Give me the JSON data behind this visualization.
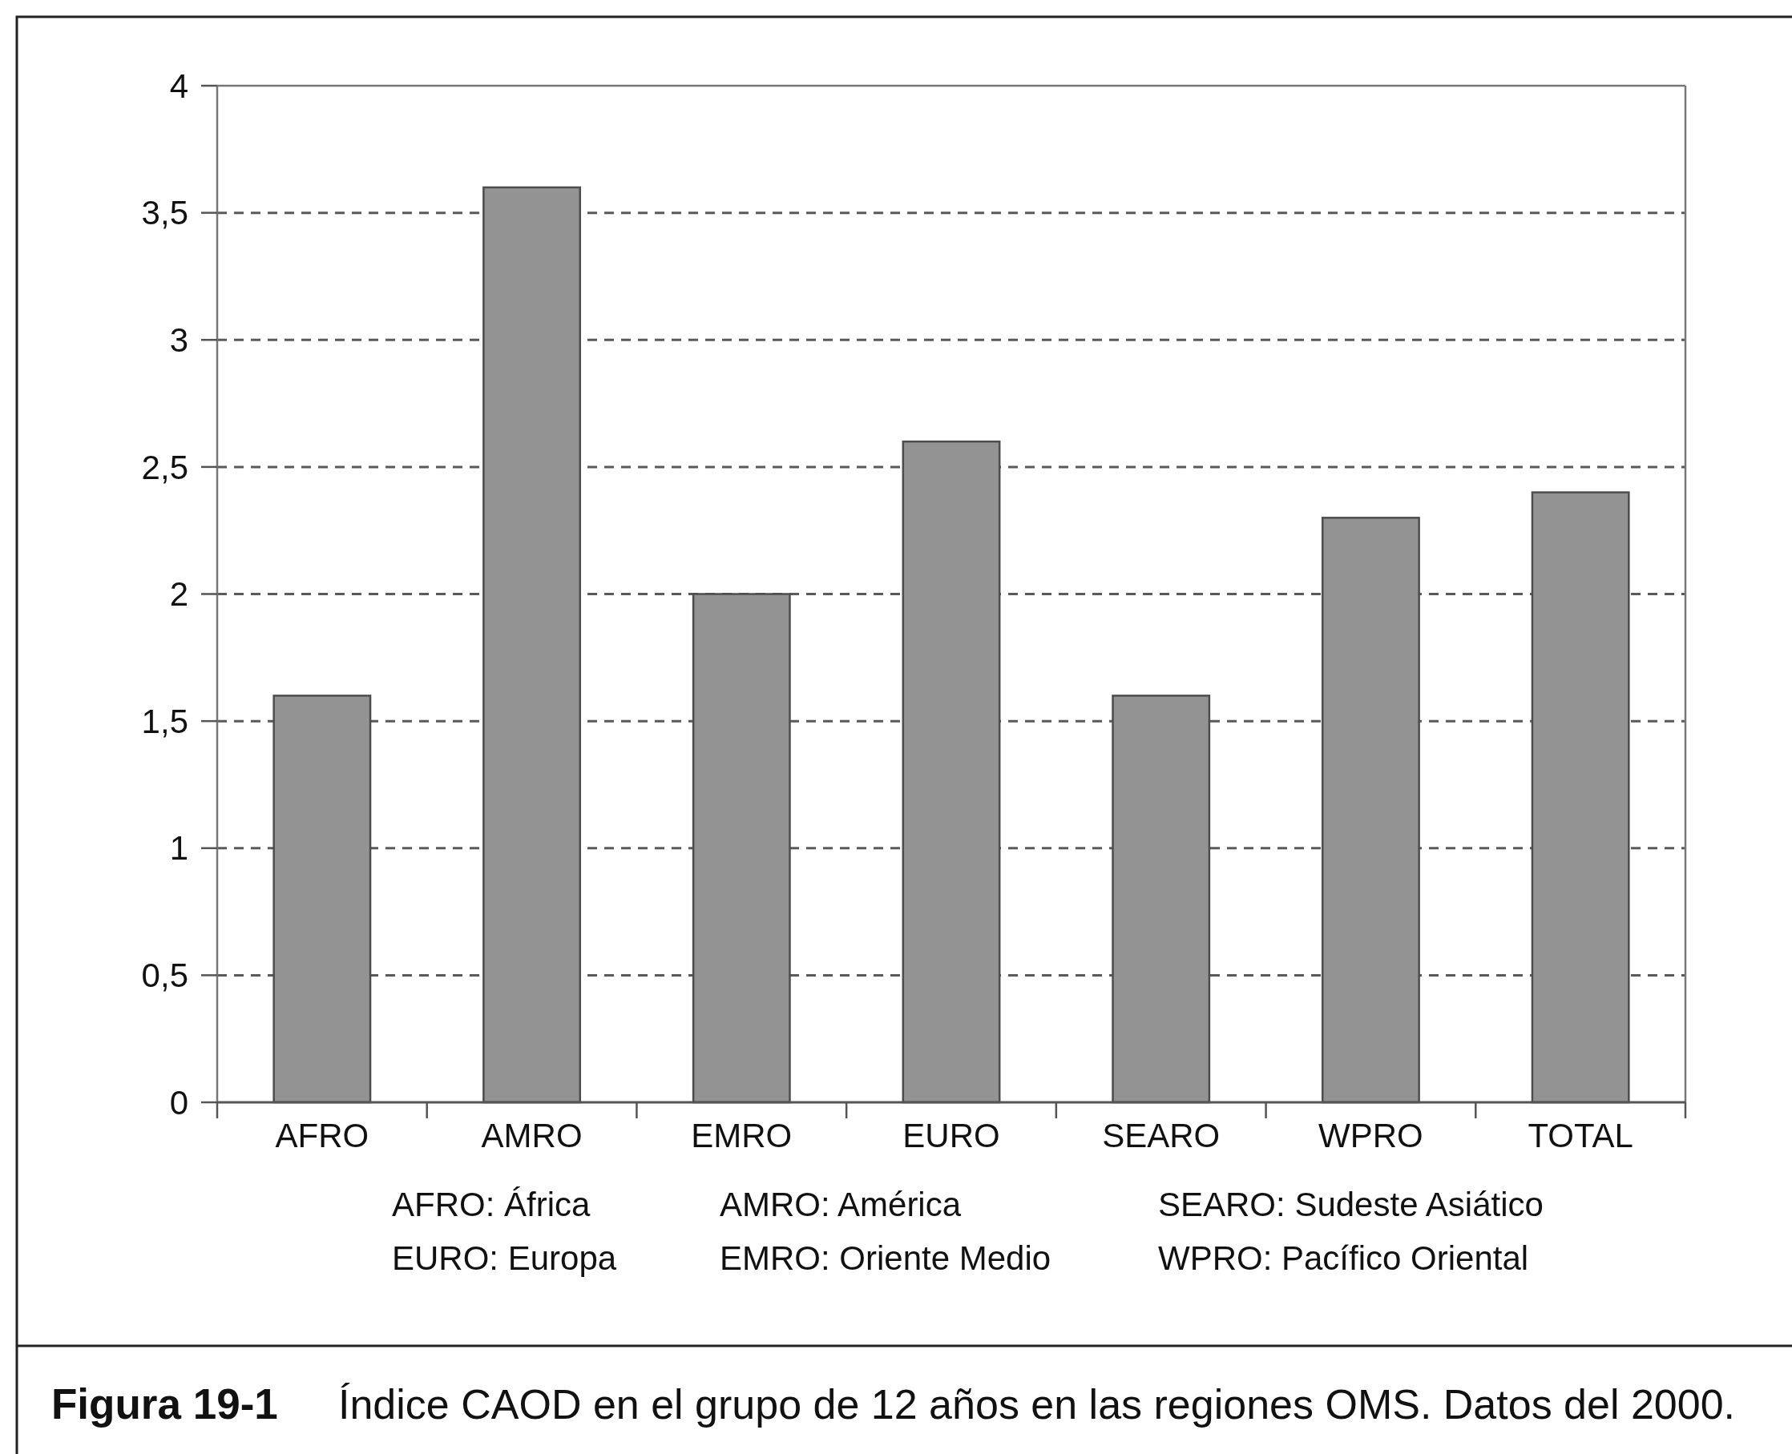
{
  "chart_data": {
    "type": "bar",
    "title": "Índice CAOD en el grupo de 12 años en las regiones OMS. Datos del 2000.",
    "categories": [
      "AFRO",
      "AMRO",
      "EMRO",
      "EURO",
      "SEARO",
      "WPRO",
      "TOTAL"
    ],
    "values": [
      1.6,
      3.6,
      2.0,
      2.6,
      1.6,
      2.3,
      2.4
    ],
    "color": "#939393",
    "ylim": [
      0,
      4
    ],
    "yticks": [
      0,
      {
        "value": 0.5,
        "label": "0,5"
      },
      1,
      {
        "value": 1.5,
        "label": "1,5"
      },
      2,
      {
        "value": 2.5,
        "label": "2,5"
      },
      3,
      {
        "value": 3.5,
        "label": "3,5"
      },
      4
    ],
    "grid": "y",
    "annotations": [
      "AFRO: África",
      "AMRO: América",
      "SEARO: Sudeste Asiático",
      "EURO: Europa",
      "EMRO: Oriente Medio",
      "WPRO: Pacífico Oriental",
      "Figura 19-1"
    ]
  }
}
